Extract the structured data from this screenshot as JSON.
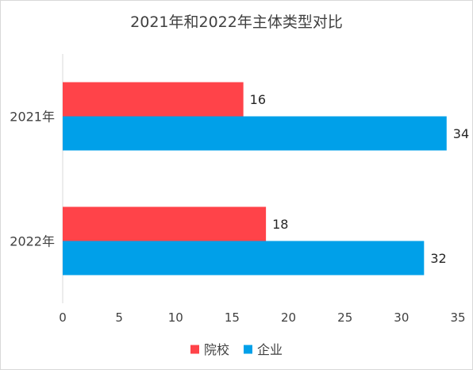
{
  "chart_data": {
    "type": "bar",
    "orientation": "horizontal",
    "title": "2021年和2022年主体类型对比",
    "categories": [
      "2021年",
      "2022年"
    ],
    "series": [
      {
        "name": "院校",
        "values": [
          16,
          18
        ],
        "color": "#ff4349"
      },
      {
        "name": "企业",
        "values": [
          34,
          32
        ],
        "color": "#00a0e9"
      }
    ],
    "xlim": [
      0,
      35
    ],
    "xticks": [
      0,
      5,
      10,
      15,
      20,
      25,
      30,
      35
    ],
    "xlabel": "",
    "ylabel": "",
    "grid": false,
    "legend_position": "bottom",
    "data_labels": true
  }
}
